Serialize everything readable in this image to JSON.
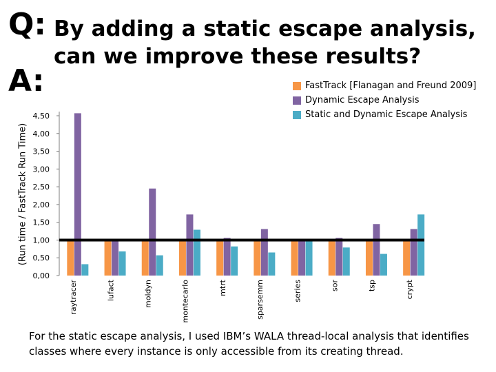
{
  "slide": {
    "q_label": "Q:",
    "a_label": "A:",
    "title": "By adding a static escape analysis, can we improve these results?",
    "footnote": "For the static escape analysis, I used IBM’s WALA thread-local analysis that identifies classes where every instance is only accessible from its creating thread."
  },
  "chart_data": {
    "type": "bar",
    "title": "",
    "xlabel": "",
    "ylabel": "(Run time / FastTrack Run Time)",
    "ylim": [
      0,
      4.5
    ],
    "yticks": [
      "0,00",
      "0,50",
      "1,00",
      "1,50",
      "2,00",
      "2,50",
      "3,00",
      "3,50",
      "4,00",
      "4,50"
    ],
    "reference_line": 1.0,
    "categories": [
      "raytracer",
      "lufact",
      "moldyn",
      "montecarlo",
      "mtrt",
      "sparsemm",
      "series",
      "sor",
      "tsp",
      "crypt"
    ],
    "series": [
      {
        "name": "FastTrack [Flanagan and Freund 2009]",
        "color": "#F79646",
        "values": [
          1,
          1,
          1,
          1,
          1,
          1,
          1,
          1,
          1,
          1
        ]
      },
      {
        "name": "Dynamic Escape Analysis",
        "color": "#8064A2",
        "values": [
          4.57,
          1.0,
          2.45,
          1.72,
          1.06,
          1.31,
          1.0,
          1.06,
          1.45,
          1.31
        ]
      },
      {
        "name": "Static and Dynamic Escape Analysis",
        "color": "#4BACC6",
        "values": [
          0.32,
          0.68,
          0.57,
          1.29,
          0.82,
          0.65,
          1.0,
          0.79,
          0.61,
          1.72
        ]
      }
    ]
  }
}
